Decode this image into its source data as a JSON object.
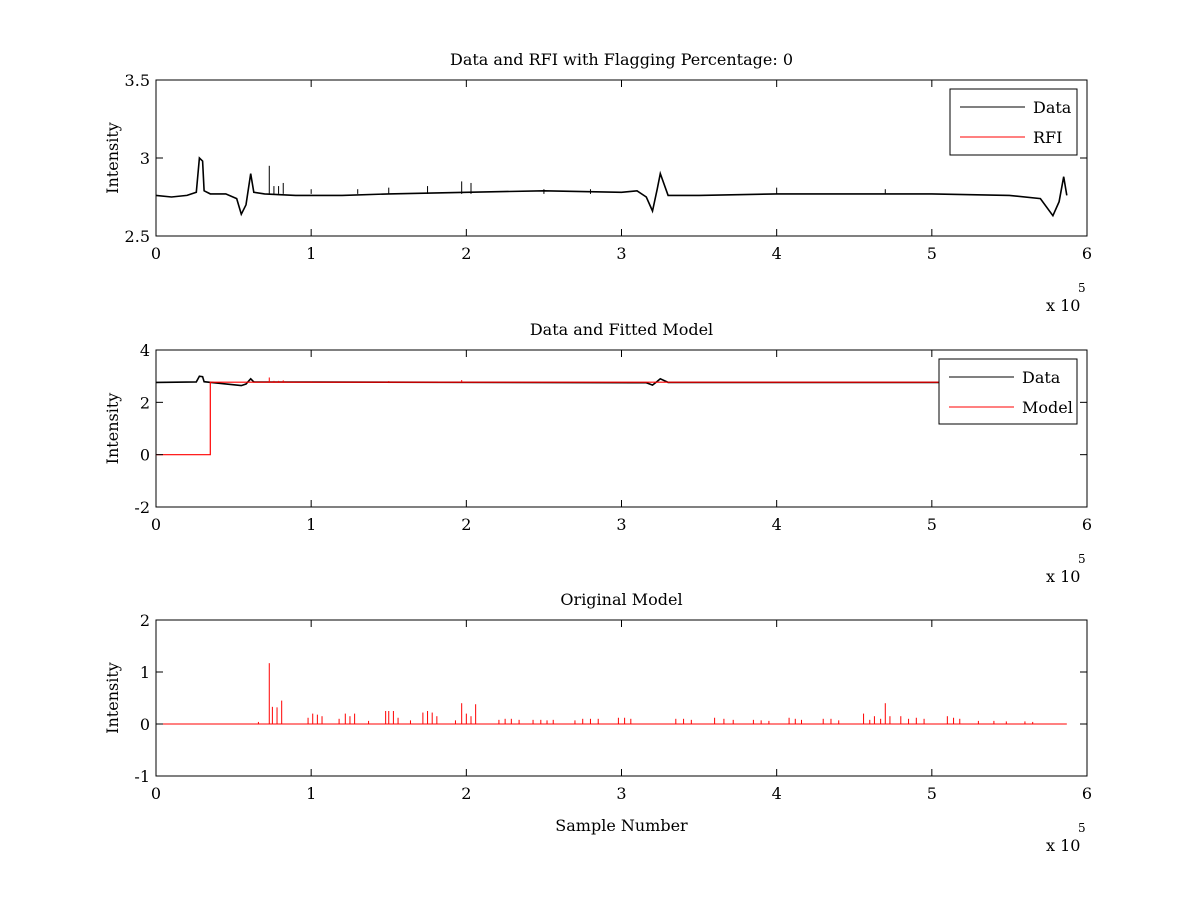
{
  "chart_data": [
    {
      "type": "line",
      "title": "Data and RFI with Flagging Percentage: 0",
      "xlabel": "",
      "ylabel": "Intensity",
      "xlim": [
        0,
        600000
      ],
      "ylim": [
        2.5,
        3.5
      ],
      "x_ticks": [
        0,
        1,
        2,
        3,
        4,
        5,
        6
      ],
      "x_tick_labels": [
        "0",
        "1",
        "2",
        "3",
        "4",
        "5",
        "6"
      ],
      "y_ticks": [
        2.5,
        3,
        3.5
      ],
      "y_tick_labels": [
        "2.5",
        "3",
        "3.5"
      ],
      "x_multiplier_label": "x 10",
      "x_multiplier_exponent": "5",
      "legend": {
        "position": "top-right",
        "entries": [
          {
            "label": "Data",
            "color": "#000000"
          },
          {
            "label": "RFI",
            "color": "#ff0000"
          }
        ]
      },
      "series": [
        {
          "name": "Data",
          "color": "#000000",
          "x": [
            0,
            10000,
            20000,
            26000,
            28000,
            30000,
            31000,
            35000,
            45000,
            52000,
            55000,
            58000,
            61000,
            63000,
            70000,
            90000,
            100000,
            120000,
            150000,
            200000,
            250000,
            300000,
            310000,
            316000,
            320000,
            323000,
            325000,
            330000,
            350000,
            400000,
            450000,
            500000,
            550000,
            570000,
            578000,
            582000,
            585000,
            587000
          ],
          "y": [
            2.76,
            2.75,
            2.76,
            2.78,
            3.0,
            2.98,
            2.79,
            2.77,
            2.77,
            2.74,
            2.64,
            2.7,
            2.9,
            2.78,
            2.77,
            2.76,
            2.76,
            2.76,
            2.77,
            2.78,
            2.79,
            2.78,
            2.79,
            2.75,
            2.66,
            2.8,
            2.9,
            2.76,
            2.76,
            2.77,
            2.77,
            2.77,
            2.76,
            2.74,
            2.63,
            2.72,
            2.88,
            2.76
          ]
        },
        {
          "name": "RFI",
          "color": "#ff0000",
          "x": [],
          "y": []
        },
        {
          "name": "",
          "color": "#000000",
          "style": "spikes",
          "baseline": 2.77,
          "x": [
            73000,
            76000,
            79000,
            82000,
            100000,
            130000,
            150000,
            175000,
            197000,
            203000,
            250000,
            280000,
            400000,
            470000
          ],
          "y": [
            2.95,
            2.82,
            2.82,
            2.84,
            2.8,
            2.8,
            2.81,
            2.82,
            2.85,
            2.84,
            2.8,
            2.8,
            2.81,
            2.8
          ]
        }
      ]
    },
    {
      "type": "line",
      "title": "Data and Fitted Model",
      "xlabel": "",
      "ylabel": "Intensity",
      "xlim": [
        0,
        600000
      ],
      "ylim": [
        -2,
        4
      ],
      "x_ticks": [
        0,
        1,
        2,
        3,
        4,
        5,
        6
      ],
      "x_tick_labels": [
        "0",
        "1",
        "2",
        "3",
        "4",
        "5",
        "6"
      ],
      "y_ticks": [
        -2,
        0,
        2,
        4
      ],
      "y_tick_labels": [
        "-2",
        "0",
        "2",
        "4"
      ],
      "x_multiplier_label": "x 10",
      "x_multiplier_exponent": "5",
      "legend": {
        "position": "top-right",
        "entries": [
          {
            "label": "Data",
            "color": "#000000"
          },
          {
            "label": "Model",
            "color": "#ff0000"
          }
        ]
      },
      "series": [
        {
          "name": "Data",
          "color": "#000000",
          "x": [
            0,
            26000,
            28000,
            30000,
            31000,
            55000,
            58000,
            61000,
            63000,
            316000,
            320000,
            323000,
            325000,
            330000,
            587000
          ],
          "y": [
            2.76,
            2.78,
            3.0,
            2.98,
            2.79,
            2.64,
            2.7,
            2.9,
            2.78,
            2.75,
            2.66,
            2.8,
            2.9,
            2.76,
            2.76
          ]
        },
        {
          "name": "Model",
          "color": "#ff0000",
          "x": [
            0,
            35000,
            35000,
            587000
          ],
          "y": [
            0,
            0,
            2.77,
            2.77
          ]
        },
        {
          "name": "",
          "color": "#ff0000",
          "style": "spikes",
          "baseline": 2.77,
          "x": [
            73000,
            76000,
            79000,
            82000,
            100000,
            150000,
            197000
          ],
          "y": [
            2.95,
            2.82,
            2.82,
            2.84,
            2.8,
            2.81,
            2.85
          ]
        }
      ]
    },
    {
      "type": "line",
      "title": "Original Model",
      "xlabel": "Sample Number",
      "ylabel": "Intensity",
      "xlim": [
        0,
        600000
      ],
      "ylim": [
        -1,
        2
      ],
      "x_ticks": [
        0,
        1,
        2,
        3,
        4,
        5,
        6
      ],
      "x_tick_labels": [
        "0",
        "1",
        "2",
        "3",
        "4",
        "5",
        "6"
      ],
      "y_ticks": [
        -1,
        0,
        1,
        2
      ],
      "y_tick_labels": [
        "-1",
        "0",
        "1",
        "2"
      ],
      "x_multiplier_label": "x 10",
      "x_multiplier_exponent": "5",
      "legend": null,
      "series": [
        {
          "name": "",
          "color": "#ff0000",
          "style": "spikes",
          "baseline": 0,
          "x_range": [
            0,
            587000
          ],
          "x": [
            66000,
            73000,
            75000,
            78000,
            81000,
            98000,
            101000,
            104000,
            107000,
            118000,
            122000,
            125000,
            128000,
            137000,
            148000,
            150000,
            153000,
            156000,
            164000,
            172000,
            175000,
            178000,
            181000,
            193000,
            197000,
            200000,
            203000,
            206000,
            221000,
            225000,
            229000,
            234000,
            243000,
            248000,
            252000,
            256000,
            270000,
            275000,
            280000,
            285000,
            298000,
            302000,
            306000,
            335000,
            340000,
            345000,
            360000,
            366000,
            372000,
            385000,
            390000,
            395000,
            408000,
            412000,
            416000,
            430000,
            435000,
            440000,
            456000,
            460000,
            463000,
            467000,
            470000,
            473000,
            480000,
            485000,
            490000,
            495000,
            510000,
            514000,
            518000,
            530000,
            540000,
            548000,
            560000,
            565000
          ],
          "y": [
            0.04,
            1.17,
            0.33,
            0.32,
            0.45,
            0.12,
            0.2,
            0.18,
            0.15,
            0.1,
            0.2,
            0.15,
            0.2,
            0.06,
            0.25,
            0.25,
            0.25,
            0.12,
            0.07,
            0.22,
            0.25,
            0.22,
            0.15,
            0.07,
            0.4,
            0.2,
            0.15,
            0.38,
            0.08,
            0.1,
            0.1,
            0.08,
            0.08,
            0.08,
            0.07,
            0.08,
            0.07,
            0.1,
            0.1,
            0.1,
            0.12,
            0.12,
            0.1,
            0.1,
            0.1,
            0.08,
            0.12,
            0.1,
            0.08,
            0.08,
            0.07,
            0.06,
            0.12,
            0.1,
            0.08,
            0.1,
            0.1,
            0.07,
            0.2,
            0.08,
            0.15,
            0.1,
            0.4,
            0.15,
            0.15,
            0.1,
            0.12,
            0.1,
            0.15,
            0.12,
            0.1,
            0.06,
            0.06,
            0.05,
            0.05,
            0.04
          ]
        }
      ]
    }
  ]
}
